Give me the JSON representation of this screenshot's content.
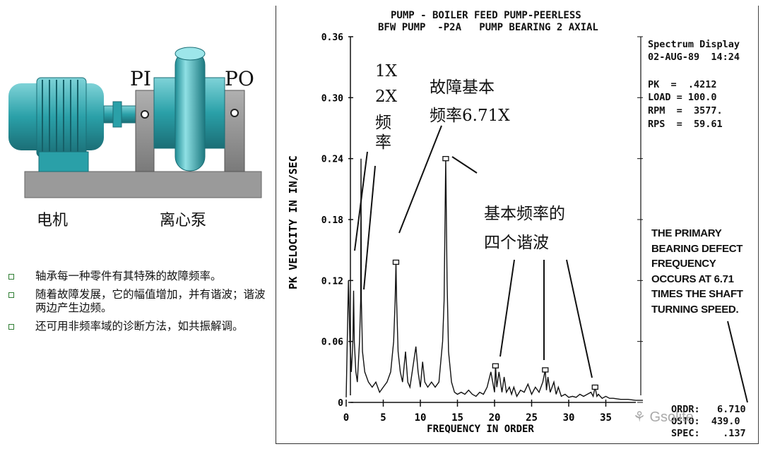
{
  "machine": {
    "label_pi": "PI",
    "label_po": "PO",
    "caption_motor": "电机",
    "caption_pump": "离心泵"
  },
  "bullets": [
    "轴承每一种零件有其特殊的故障频率。",
    "随着故障发展，它的幅值增加，并有谐波；谐波两边产生边频。",
    "还可用非频率域的诊断方法，如共振解调。"
  ],
  "header": {
    "line1": "PUMP - BOILER FEED PUMP-PEERLESS",
    "line2": "BFW PUMP  -P2A   PUMP BEARING 2 AXIAL"
  },
  "info": {
    "title": "Spectrum Display",
    "datetime": "02-AUG-89  14:24",
    "pk": "PK  =  .4212",
    "load": "LOAD = 100.0",
    "rpm": "RPM  =  3577.",
    "rps": "RPS  =  59.61"
  },
  "footer": {
    "ordr": "ORDR:   6.710",
    "ordr_partial": "OSTO:  439.0",
    "spec": "SPEC:    .137"
  },
  "watermark": "Gsolite",
  "annotations": {
    "h1x": "1X",
    "h2x": "2X",
    "freq_vertical": [
      "频",
      "率"
    ],
    "fault_line1": "故障基本",
    "fault_line2": "频率6.71X",
    "harm_line1": "基本频率的",
    "harm_line2": "四个谐波"
  },
  "note": [
    "THE PRIMARY",
    "BEARING DEFECT",
    "FREQUENCY",
    "OCCURS AT 6.71",
    "TIMES THE SHAFT",
    "TURNING SPEED."
  ],
  "chart_data": {
    "type": "line",
    "title": "PUMP - BOILER FEED PUMP-PEERLESS",
    "subtitle": "BFW PUMP  -P2A   PUMP BEARING 2 AXIAL",
    "xlabel": "FREQUENCY IN ORDER",
    "ylabel": "PK VELOCITY IN IN/SEC",
    "xlim": [
      0,
      40
    ],
    "ylim": [
      0,
      0.36
    ],
    "xticks": [
      "0",
      "5",
      "10",
      "15",
      "20",
      "25",
      "30",
      "35"
    ],
    "yticks": [
      "0.36",
      "0.30",
      "0.24",
      "0.18",
      "0.12",
      "0.06",
      "0"
    ],
    "series": [
      {
        "x": [
          0.0,
          0.3,
          0.5,
          0.7,
          0.9,
          1.0,
          1.1,
          1.3,
          1.5,
          1.8,
          1.95,
          2.0,
          2.05,
          2.2,
          2.5,
          3.0,
          3.5,
          4.0,
          4.5,
          5.0,
          5.5,
          6.0,
          6.4,
          6.6,
          6.71,
          6.8,
          7.0,
          7.3,
          7.6,
          8.0,
          8.3,
          8.6,
          9.0,
          9.4,
          9.7,
          10.0,
          10.3,
          10.6,
          11.0,
          11.5,
          12.0,
          12.5,
          13.0,
          13.2,
          13.42,
          13.6,
          13.8,
          14.2,
          14.6,
          15.0,
          15.5,
          16.0,
          16.5,
          17.0,
          17.5,
          18.0,
          18.5,
          19.0,
          19.5,
          20.0,
          20.13,
          20.3,
          20.6,
          21.0,
          21.3,
          21.6,
          22.0,
          22.3,
          22.6,
          23.0,
          23.5,
          24.0,
          24.5,
          25.0,
          25.5,
          26.0,
          26.5,
          26.84,
          27.0,
          27.2,
          27.5,
          28.0,
          28.3,
          28.6,
          29.0,
          29.5,
          30.0,
          30.5,
          31.0,
          31.5,
          32.0,
          32.5,
          33.0,
          33.3,
          33.55,
          33.8,
          34.0,
          34.5,
          35.0,
          35.5,
          36.0,
          37.0,
          38.0,
          39.0,
          40.0
        ],
        "y": [
          0.005,
          0.12,
          0.06,
          0.03,
          0.06,
          0.11,
          0.06,
          0.03,
          0.02,
          0.06,
          0.1,
          0.24,
          0.1,
          0.05,
          0.03,
          0.02,
          0.015,
          0.02,
          0.01,
          0.015,
          0.02,
          0.03,
          0.06,
          0.1,
          0.138,
          0.1,
          0.05,
          0.03,
          0.02,
          0.05,
          0.02,
          0.015,
          0.035,
          0.055,
          0.03,
          0.015,
          0.04,
          0.02,
          0.015,
          0.02,
          0.015,
          0.02,
          0.06,
          0.1,
          0.24,
          0.12,
          0.05,
          0.02,
          0.01,
          0.008,
          0.01,
          0.008,
          0.012,
          0.008,
          0.006,
          0.01,
          0.008,
          0.015,
          0.03,
          0.01,
          0.036,
          0.015,
          0.03,
          0.01,
          0.025,
          0.01,
          0.015,
          0.008,
          0.015,
          0.006,
          0.012,
          0.01,
          0.018,
          0.008,
          0.015,
          0.01,
          0.02,
          0.032,
          0.012,
          0.025,
          0.01,
          0.02,
          0.008,
          0.015,
          0.006,
          0.008,
          0.005,
          0.006,
          0.005,
          0.008,
          0.006,
          0.008,
          0.01,
          0.006,
          0.015,
          0.006,
          0.008,
          0.004,
          0.006,
          0.004,
          0.004,
          0.003,
          0.003,
          0.002,
          0.002
        ]
      }
    ],
    "markers": [
      {
        "x": 6.71,
        "y": 0.138
      },
      {
        "x": 13.42,
        "y": 0.24
      },
      {
        "x": 20.13,
        "y": 0.036
      },
      {
        "x": 26.84,
        "y": 0.032
      },
      {
        "x": 33.55,
        "y": 0.015
      }
    ],
    "grid": false
  }
}
